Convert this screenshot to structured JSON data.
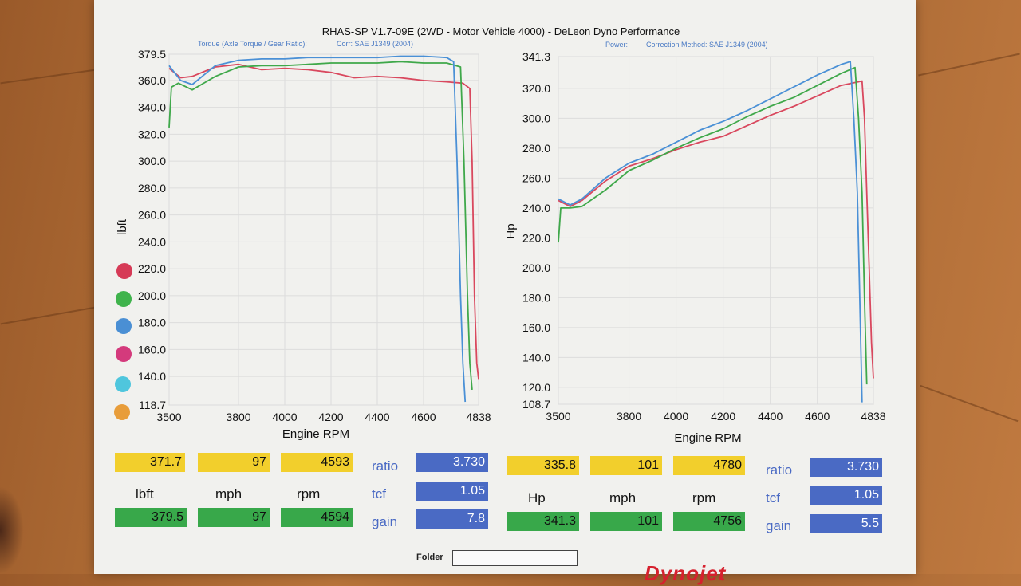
{
  "header": {
    "title": "RHAS-SP V1.7-09E  (2WD - Motor Vehicle 4000) - DeLeon Dyno Performance",
    "left_subtitle": "Torque (Axle Torque / Gear Ratio):",
    "left_corr": "Corr: SAE J1349 (2004)",
    "right_subtitle": "Power:",
    "right_corr": "Correction Method: SAE J1349 (2004)"
  },
  "colors": {
    "red": "#d9485e",
    "green": "#3fa84a",
    "blue": "#4a90d6"
  },
  "legend_dots": [
    "#d63a56",
    "#3fb34c",
    "#4a8fd4",
    "#d43a7c",
    "#4fc6dd",
    "#e89d3a"
  ],
  "chart_data": [
    {
      "type": "line",
      "title": "Torque (Axle Torque / Gear Ratio):",
      "xlabel": "Engine RPM",
      "ylabel": "lbft",
      "xlim": [
        3500,
        4838
      ],
      "ylim": [
        118.7,
        379.5
      ],
      "xticks": [
        "3500",
        "3800",
        "4000",
        "4200",
        "4400",
        "4600",
        "4838"
      ],
      "yticks": [
        "379.5",
        "360.0",
        "340.0",
        "320.0",
        "300.0",
        "280.0",
        "260.0",
        "240.0",
        "220.0",
        "200.0",
        "180.0",
        "160.0",
        "140.0",
        "118.7"
      ],
      "series": [
        {
          "color": "red",
          "points": [
            [
              3500,
              369
            ],
            [
              3550,
              362
            ],
            [
              3600,
              363
            ],
            [
              3700,
              370
            ],
            [
              3800,
              372
            ],
            [
              3900,
              368
            ],
            [
              4000,
              369
            ],
            [
              4100,
              368
            ],
            [
              4200,
              366
            ],
            [
              4300,
              362
            ],
            [
              4400,
              363
            ],
            [
              4500,
              362
            ],
            [
              4600,
              360
            ],
            [
              4700,
              359
            ],
            [
              4770,
              358
            ],
            [
              4800,
              354
            ],
            [
              4810,
              300
            ],
            [
              4820,
              200
            ],
            [
              4830,
              150
            ],
            [
              4838,
              138
            ]
          ]
        },
        {
          "color": "green",
          "points": [
            [
              3500,
              325
            ],
            [
              3510,
              355
            ],
            [
              3540,
              358
            ],
            [
              3600,
              353
            ],
            [
              3700,
              363
            ],
            [
              3800,
              370
            ],
            [
              3900,
              371
            ],
            [
              4000,
              371
            ],
            [
              4100,
              372
            ],
            [
              4200,
              373
            ],
            [
              4300,
              373
            ],
            [
              4400,
              373
            ],
            [
              4500,
              374
            ],
            [
              4600,
              373
            ],
            [
              4700,
              373
            ],
            [
              4760,
              370
            ],
            [
              4775,
              300
            ],
            [
              4790,
              200
            ],
            [
              4800,
              150
            ],
            [
              4810,
              130
            ]
          ]
        },
        {
          "color": "blue",
          "points": [
            [
              3500,
              371
            ],
            [
              3550,
              360
            ],
            [
              3600,
              357
            ],
            [
              3700,
              371
            ],
            [
              3800,
              375
            ],
            [
              3900,
              376
            ],
            [
              4000,
              376
            ],
            [
              4100,
              377
            ],
            [
              4200,
              377
            ],
            [
              4300,
              377
            ],
            [
              4400,
              377
            ],
            [
              4500,
              378
            ],
            [
              4600,
              378
            ],
            [
              4700,
              377
            ],
            [
              4730,
              374
            ],
            [
              4745,
              300
            ],
            [
              4760,
              200
            ],
            [
              4770,
              150
            ],
            [
              4780,
              121
            ]
          ]
        }
      ]
    },
    {
      "type": "line",
      "title": "Power:",
      "xlabel": "Engine RPM",
      "ylabel": "Hp",
      "xlim": [
        3500,
        4838
      ],
      "ylim": [
        108.7,
        341.3
      ],
      "xticks": [
        "3500",
        "3800",
        "4000",
        "4200",
        "4400",
        "4600",
        "4838"
      ],
      "yticks": [
        "341.3",
        "320.0",
        "300.0",
        "280.0",
        "260.0",
        "240.0",
        "220.0",
        "200.0",
        "180.0",
        "160.0",
        "140.0",
        "120.0",
        "108.7"
      ],
      "series": [
        {
          "color": "red",
          "points": [
            [
              3500,
              245
            ],
            [
              3550,
              241
            ],
            [
              3600,
              245
            ],
            [
              3700,
              258
            ],
            [
              3800,
              268
            ],
            [
              3900,
              273
            ],
            [
              4000,
              279
            ],
            [
              4100,
              284
            ],
            [
              4200,
              288
            ],
            [
              4300,
              295
            ],
            [
              4400,
              302
            ],
            [
              4500,
              308
            ],
            [
              4600,
              315
            ],
            [
              4700,
              322
            ],
            [
              4790,
              325
            ],
            [
              4800,
              300
            ],
            [
              4810,
              250
            ],
            [
              4820,
              200
            ],
            [
              4830,
              150
            ],
            [
              4838,
              126
            ]
          ]
        },
        {
          "color": "green",
          "points": [
            [
              3500,
              217
            ],
            [
              3510,
              240
            ],
            [
              3550,
              240
            ],
            [
              3600,
              241
            ],
            [
              3700,
              252
            ],
            [
              3800,
              265
            ],
            [
              3900,
              272
            ],
            [
              4000,
              280
            ],
            [
              4100,
              287
            ],
            [
              4200,
              293
            ],
            [
              4300,
              301
            ],
            [
              4400,
              308
            ],
            [
              4500,
              314
            ],
            [
              4600,
              322
            ],
            [
              4700,
              330
            ],
            [
              4760,
              334
            ],
            [
              4775,
              300
            ],
            [
              4790,
              250
            ],
            [
              4800,
              180
            ],
            [
              4810,
              122
            ]
          ]
        },
        {
          "color": "blue",
          "points": [
            [
              3500,
              246
            ],
            [
              3550,
              242
            ],
            [
              3600,
              246
            ],
            [
              3700,
              260
            ],
            [
              3800,
              270
            ],
            [
              3900,
              276
            ],
            [
              4000,
              284
            ],
            [
              4100,
              292
            ],
            [
              4200,
              298
            ],
            [
              4300,
              305
            ],
            [
              4400,
              313
            ],
            [
              4500,
              321
            ],
            [
              4600,
              329
            ],
            [
              4700,
              336
            ],
            [
              4740,
              338
            ],
            [
              4755,
              300
            ],
            [
              4770,
              250
            ],
            [
              4780,
              180
            ],
            [
              4790,
              110
            ]
          ]
        }
      ]
    }
  ],
  "left_panel": {
    "val1": "371.7",
    "val2": "97",
    "val3": "4593",
    "unit1": "lbft",
    "unit2": "mph",
    "unit3": "rpm",
    "peak1": "379.5",
    "peak2": "97",
    "peak3": "4594",
    "ratio_label": "ratio",
    "ratio": "3.730",
    "tcf_label": "tcf",
    "tcf": "1.05",
    "gain_label": "gain",
    "gain": "7.8"
  },
  "right_panel": {
    "val1": "335.8",
    "val2": "101",
    "val3": "4780",
    "unit1": "Hp",
    "unit2": "mph",
    "unit3": "rpm",
    "peak1": "341.3",
    "peak2": "101",
    "peak3": "4756",
    "ratio_label": "ratio",
    "ratio": "3.730",
    "tcf_label": "tcf",
    "tcf": "1.05",
    "gain_label": "gain",
    "gain": "5.5"
  },
  "footer": {
    "folder_label": "Folder",
    "logo": "Dynojet"
  }
}
